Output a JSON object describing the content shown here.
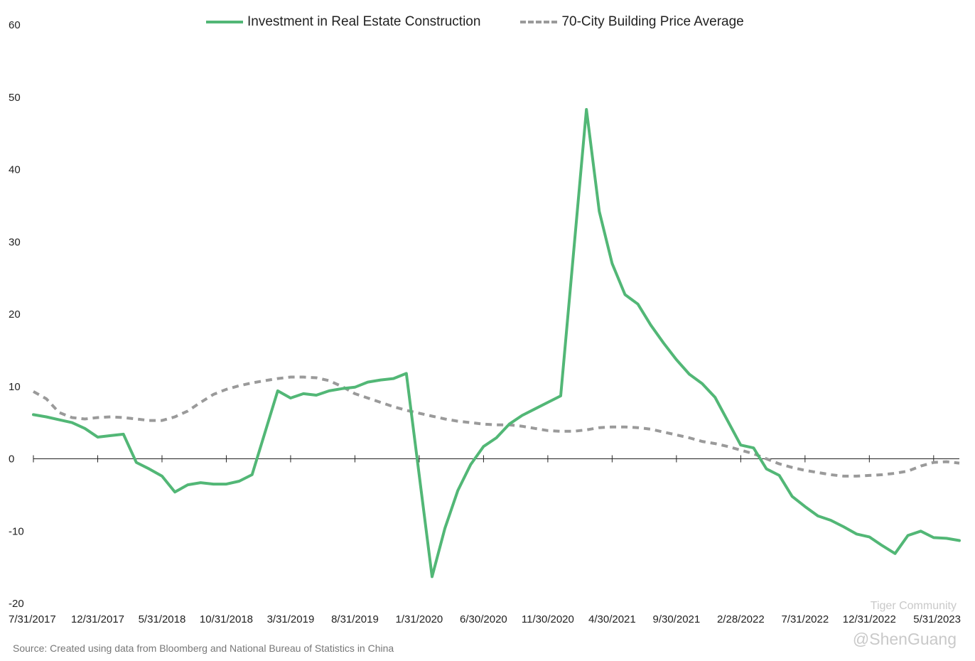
{
  "chart_data": {
    "type": "line",
    "title": "",
    "xlabel": "",
    "ylabel": "",
    "ylim": [
      -20,
      60
    ],
    "yticks": [
      -20,
      -10,
      0,
      10,
      20,
      30,
      40,
      50,
      60
    ],
    "xtick_labels": [
      "7/31/2017",
      "12/31/2017",
      "5/31/2018",
      "10/31/2018",
      "3/31/2019",
      "8/31/2019",
      "1/31/2020",
      "6/30/2020",
      "11/30/2020",
      "4/30/2021",
      "9/30/2021",
      "2/28/2022",
      "7/31/2022",
      "12/31/2022",
      "5/31/2023"
    ],
    "xtick_positions": [
      0,
      5,
      10,
      15,
      20,
      25,
      30,
      35,
      40,
      45,
      50,
      55,
      60,
      65,
      70
    ],
    "x_range": [
      0,
      72
    ],
    "legend_position": "top",
    "series": [
      {
        "name": "Investment in Real Estate Construction",
        "color": "#52b776",
        "style": "solid",
        "points": [
          [
            0,
            6.1
          ],
          [
            1,
            5.8
          ],
          [
            2,
            5.4
          ],
          [
            3,
            5.0
          ],
          [
            4,
            4.2
          ],
          [
            5,
            3.0
          ],
          [
            6,
            3.2
          ],
          [
            7,
            3.4
          ],
          [
            8,
            -0.5
          ],
          [
            9,
            -1.4
          ],
          [
            10,
            -2.4
          ],
          [
            11,
            -4.6
          ],
          [
            12,
            -3.6
          ],
          [
            13,
            -3.3
          ],
          [
            14,
            -3.5
          ],
          [
            15,
            -3.5
          ],
          [
            16,
            -3.1
          ],
          [
            17,
            -2.2
          ],
          [
            19,
            9.4
          ],
          [
            20,
            8.4
          ],
          [
            21,
            9.0
          ],
          [
            22,
            8.8
          ],
          [
            23,
            9.4
          ],
          [
            24,
            9.7
          ],
          [
            25,
            9.9
          ],
          [
            26,
            10.6
          ],
          [
            27,
            10.9
          ],
          [
            28,
            11.1
          ],
          [
            29,
            11.8
          ],
          [
            31,
            -16.3
          ],
          [
            32,
            -9.6
          ],
          [
            33,
            -4.4
          ],
          [
            34,
            -0.8
          ],
          [
            35,
            1.7
          ],
          [
            36,
            2.9
          ],
          [
            37,
            4.8
          ],
          [
            38,
            6.0
          ],
          [
            39,
            6.9
          ],
          [
            40,
            7.8
          ],
          [
            41,
            8.7
          ],
          [
            43,
            48.3
          ],
          [
            44,
            34.2
          ],
          [
            45,
            27.0
          ],
          [
            46,
            22.7
          ],
          [
            47,
            21.4
          ],
          [
            48,
            18.5
          ],
          [
            49,
            16.0
          ],
          [
            50,
            13.7
          ],
          [
            51,
            11.7
          ],
          [
            52,
            10.4
          ],
          [
            53,
            8.5
          ],
          [
            55,
            1.9
          ],
          [
            56,
            1.5
          ],
          [
            57,
            -1.4
          ],
          [
            58,
            -2.3
          ],
          [
            59,
            -5.2
          ],
          [
            60,
            -6.6
          ],
          [
            61,
            -7.9
          ],
          [
            62,
            -8.5
          ],
          [
            63,
            -9.4
          ],
          [
            64,
            -10.4
          ],
          [
            65,
            -10.8
          ],
          [
            66,
            -12.0
          ],
          [
            67,
            -13.1
          ],
          [
            68,
            -10.6
          ],
          [
            69,
            -10.0
          ],
          [
            70,
            -10.9
          ],
          [
            71,
            -11.0
          ],
          [
            72,
            -11.3
          ]
        ]
      },
      {
        "name": "70-City Building Price Average",
        "color": "#9a9a9a",
        "style": "dashed",
        "points": [
          [
            0,
            9.3
          ],
          [
            1,
            8.3
          ],
          [
            2,
            6.4
          ],
          [
            3,
            5.7
          ],
          [
            4,
            5.5
          ],
          [
            5,
            5.7
          ],
          [
            6,
            5.8
          ],
          [
            7,
            5.7
          ],
          [
            8,
            5.5
          ],
          [
            9,
            5.3
          ],
          [
            10,
            5.3
          ],
          [
            11,
            5.8
          ],
          [
            12,
            6.6
          ],
          [
            13,
            7.8
          ],
          [
            14,
            8.9
          ],
          [
            15,
            9.6
          ],
          [
            16,
            10.1
          ],
          [
            17,
            10.5
          ],
          [
            18,
            10.8
          ],
          [
            19,
            11.1
          ],
          [
            20,
            11.3
          ],
          [
            21,
            11.3
          ],
          [
            22,
            11.2
          ],
          [
            23,
            10.8
          ],
          [
            24,
            10.0
          ],
          [
            25,
            9.0
          ],
          [
            26,
            8.4
          ],
          [
            27,
            7.8
          ],
          [
            28,
            7.2
          ],
          [
            29,
            6.7
          ],
          [
            30,
            6.3
          ],
          [
            31,
            5.9
          ],
          [
            32,
            5.5
          ],
          [
            33,
            5.2
          ],
          [
            34,
            5.0
          ],
          [
            35,
            4.8
          ],
          [
            36,
            4.7
          ],
          [
            37,
            4.7
          ],
          [
            38,
            4.5
          ],
          [
            39,
            4.2
          ],
          [
            40,
            3.9
          ],
          [
            41,
            3.8
          ],
          [
            42,
            3.8
          ],
          [
            43,
            4.0
          ],
          [
            44,
            4.3
          ],
          [
            45,
            4.4
          ],
          [
            46,
            4.4
          ],
          [
            47,
            4.3
          ],
          [
            48,
            4.1
          ],
          [
            49,
            3.7
          ],
          [
            50,
            3.3
          ],
          [
            51,
            2.9
          ],
          [
            52,
            2.4
          ],
          [
            53,
            2.1
          ],
          [
            54,
            1.7
          ],
          [
            55,
            1.2
          ],
          [
            56,
            0.7
          ],
          [
            57,
            0.0
          ],
          [
            58,
            -0.7
          ],
          [
            59,
            -1.2
          ],
          [
            60,
            -1.6
          ],
          [
            61,
            -1.9
          ],
          [
            62,
            -2.2
          ],
          [
            63,
            -2.4
          ],
          [
            64,
            -2.4
          ],
          [
            65,
            -2.3
          ],
          [
            66,
            -2.2
          ],
          [
            67,
            -2.0
          ],
          [
            68,
            -1.7
          ],
          [
            69,
            -1.0
          ],
          [
            70,
            -0.5
          ],
          [
            71,
            -0.4
          ],
          [
            72,
            -0.6
          ]
        ]
      }
    ]
  },
  "source_note": "Source: Created using data from Bloomberg and National Bureau of Statistics in China",
  "watermark": {
    "community": "Tiger Community",
    "handle": "@ShenGuang"
  }
}
